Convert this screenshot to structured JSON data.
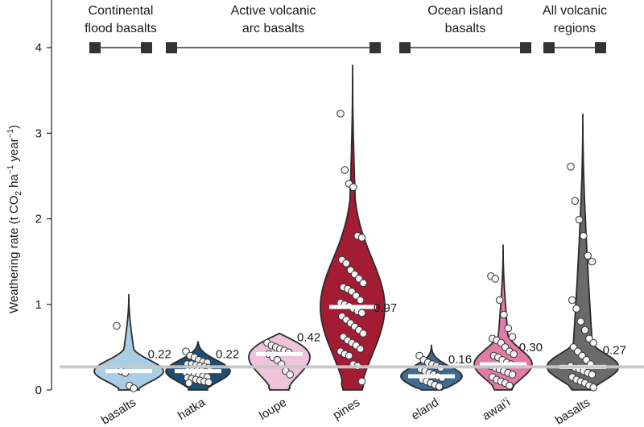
{
  "chart_data": {
    "type": "violin",
    "ylabel": "Weathering rate (t CO2 ha−1 year−1)",
    "ylabel_parts": {
      "a": "Weathering rate (t CO",
      "sub": "2",
      "b": " ha",
      "sup1": "−1",
      "c": " year",
      "sup2": "−1",
      "d": ")"
    },
    "ylim": [
      0,
      4.5
    ],
    "yticks": [
      "0",
      "1",
      "2",
      "3",
      "4"
    ],
    "ytick_values": [
      0,
      1,
      2,
      3,
      4
    ],
    "reference_line": 0.27,
    "groups": [
      {
        "label_lines": [
          "Continental",
          "flood basalts"
        ],
        "from": 0,
        "to": 0
      },
      {
        "label_lines": [
          "Active volcanic",
          "arc basalts"
        ],
        "from": 1,
        "to": 3
      },
      {
        "label_lines": [
          "Ocean island",
          "basalts"
        ],
        "from": 4,
        "to": 5
      },
      {
        "label_lines": [
          "All volcanic",
          "regions"
        ],
        "from": 6,
        "to": 6
      }
    ],
    "violins": [
      {
        "category": "basalts",
        "median": 0.22,
        "median_label": "0.22",
        "color": "#a9cde4",
        "max": 1.12,
        "points": [
          0.75,
          0.22,
          0.2,
          0.05,
          0.02
        ]
      },
      {
        "category": "hatka",
        "median": 0.22,
        "median_label": "0.22",
        "color": "#1f4e73",
        "max": 0.57,
        "points": [
          0.45,
          0.4,
          0.38,
          0.35,
          0.33,
          0.32,
          0.3,
          0.3,
          0.29,
          0.28,
          0.27,
          0.26,
          0.25,
          0.24,
          0.23,
          0.22,
          0.21,
          0.2,
          0.19,
          0.18,
          0.17,
          0.16,
          0.15,
          0.14,
          0.13,
          0.12,
          0.11,
          0.1,
          0.09,
          0.08
        ]
      },
      {
        "category": "loupe",
        "median": 0.42,
        "median_label": "0.42",
        "color": "#efc3d9",
        "max": 0.66,
        "points": [
          0.55,
          0.52,
          0.5,
          0.48,
          0.46,
          0.44,
          0.42,
          0.38,
          0.35,
          0.3,
          0.22,
          0.18
        ]
      },
      {
        "category": "pines",
        "median": 0.97,
        "median_label": "0.97",
        "color": "#a31c34",
        "max": 3.8,
        "points": [
          3.23,
          2.57,
          2.41,
          2.37,
          1.8,
          1.78,
          1.52,
          1.48,
          1.4,
          1.35,
          1.3,
          1.25,
          1.2,
          1.18,
          1.15,
          1.1,
          1.05,
          1.02,
          1.0,
          0.98,
          0.95,
          0.92,
          0.9,
          0.86,
          0.82,
          0.78,
          0.74,
          0.7,
          0.66,
          0.62,
          0.58,
          0.55,
          0.52,
          0.48,
          0.45,
          0.42,
          0.4,
          0.3,
          0.28,
          0.1
        ]
      },
      {
        "category": "eland",
        "median": 0.16,
        "median_label": "0.16",
        "color": "#3d6b93",
        "max": 0.53,
        "points": [
          0.4,
          0.35,
          0.32,
          0.3,
          0.28,
          0.26,
          0.24,
          0.22,
          0.2,
          0.18,
          0.16,
          0.14,
          0.12,
          0.1,
          0.08,
          0.06,
          0.04
        ]
      },
      {
        "category": "awaiʻi",
        "median": 0.3,
        "median_label": "0.30",
        "color": "#e37ba5",
        "max": 1.7,
        "points": [
          1.33,
          1.3,
          1.05,
          0.88,
          0.72,
          0.62,
          0.6,
          0.58,
          0.55,
          0.5,
          0.45,
          0.42,
          0.4,
          0.38,
          0.35,
          0.32,
          0.3,
          0.28,
          0.26,
          0.24,
          0.22,
          0.2,
          0.18,
          0.15,
          0.12,
          0.1,
          0.08,
          0.05
        ]
      },
      {
        "category": "basalts",
        "median": 0.27,
        "median_label": "0.27",
        "color": "#6a6a6a",
        "max": 3.23,
        "points": [
          2.61,
          2.21,
          1.99,
          1.8,
          1.57,
          1.5,
          1.05,
          0.95,
          0.8,
          0.7,
          0.6,
          0.55,
          0.5,
          0.45,
          0.4,
          0.35,
          0.3,
          0.28,
          0.26,
          0.24,
          0.22,
          0.2,
          0.18,
          0.15,
          0.12,
          0.1,
          0.08,
          0.05,
          0.03
        ]
      }
    ]
  }
}
